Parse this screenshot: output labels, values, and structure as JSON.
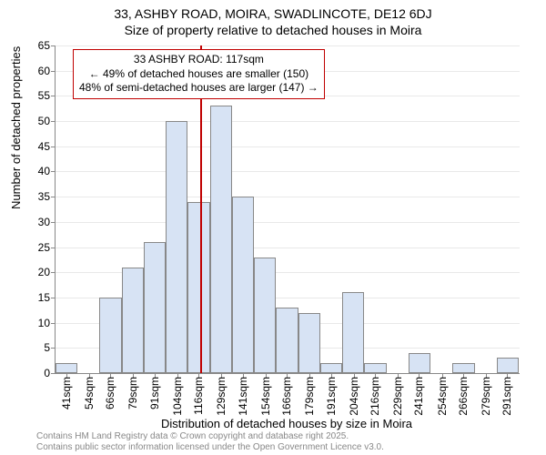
{
  "title": {
    "line1": "33, ASHBY ROAD, MOIRA, SWADLINCOTE, DE12 6DJ",
    "line2": "Size of property relative to detached houses in Moira"
  },
  "chart": {
    "type": "histogram",
    "ylabel": "Number of detached properties",
    "xlabel": "Distribution of detached houses by size in Moira",
    "ylim": [
      0,
      65
    ],
    "ytick_step": 5,
    "yticks": [
      0,
      5,
      10,
      15,
      20,
      25,
      30,
      35,
      40,
      45,
      50,
      55,
      60,
      65
    ],
    "xticks": [
      "41sqm",
      "54sqm",
      "66sqm",
      "79sqm",
      "91sqm",
      "104sqm",
      "116sqm",
      "129sqm",
      "141sqm",
      "154sqm",
      "166sqm",
      "179sqm",
      "191sqm",
      "204sqm",
      "216sqm",
      "229sqm",
      "241sqm",
      "254sqm",
      "266sqm",
      "279sqm",
      "291sqm"
    ],
    "xtick_step": 12.5,
    "x_data_min": 35,
    "x_data_max": 298,
    "bar_width_sqm": 12.5,
    "bars": [
      {
        "x": 35,
        "v": 2
      },
      {
        "x": 47.5,
        "v": 0
      },
      {
        "x": 60,
        "v": 15
      },
      {
        "x": 72.5,
        "v": 21
      },
      {
        "x": 85,
        "v": 26
      },
      {
        "x": 97.5,
        "v": 50
      },
      {
        "x": 110,
        "v": 34
      },
      {
        "x": 122.5,
        "v": 53
      },
      {
        "x": 135,
        "v": 35
      },
      {
        "x": 147.5,
        "v": 23
      },
      {
        "x": 160,
        "v": 13
      },
      {
        "x": 172.5,
        "v": 12
      },
      {
        "x": 185,
        "v": 2
      },
      {
        "x": 197.5,
        "v": 16
      },
      {
        "x": 210,
        "v": 2
      },
      {
        "x": 222.5,
        "v": 0
      },
      {
        "x": 235,
        "v": 4
      },
      {
        "x": 247.5,
        "v": 0
      },
      {
        "x": 260,
        "v": 2
      },
      {
        "x": 272.5,
        "v": 0
      },
      {
        "x": 285,
        "v": 3
      }
    ],
    "bar_fill": "#d7e3f4",
    "bar_stroke": "#888888",
    "grid_color": "#e9e9e9",
    "background_color": "#ffffff",
    "axis_color": "#888888",
    "label_fontsize": 13,
    "tick_fontsize": 12,
    "title_fontsize": 14,
    "reference_line": {
      "x": 117,
      "color": "#c00000",
      "width": 2
    },
    "annotation": {
      "line1": "33 ASHBY ROAD: 117sqm",
      "line2": "← 49% of detached houses are smaller (150)",
      "line3": "48% of semi-detached houses are larger (147) →",
      "border_color": "#c00000",
      "border_width": 1,
      "y_top": 56,
      "x_center": 117
    }
  },
  "footer": {
    "line1": "Contains HM Land Registry data © Crown copyright and database right 2025.",
    "line2": "Contains public sector information licensed under the Open Government Licence v3.0."
  }
}
